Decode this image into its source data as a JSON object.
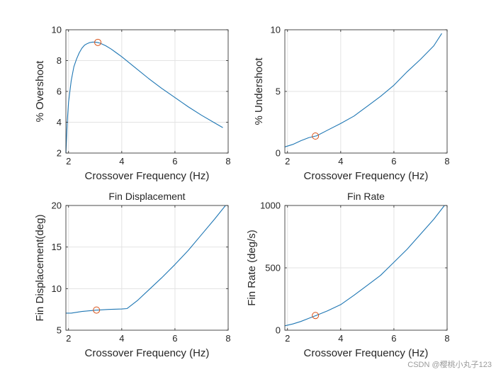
{
  "watermark": "CSDN @樱桃小丸子123",
  "colors": {
    "line": "#1f77b4",
    "marker": "#d95319",
    "grid": "#e3e3e3",
    "axis": "#262626",
    "background": "#ffffff"
  },
  "chart_data": [
    {
      "id": "overshoot",
      "type": "line",
      "title": "",
      "xlabel": "Crossover Frequency (Hz)",
      "ylabel": "% Overshoot",
      "xlim": [
        1.9,
        8
      ],
      "ylim": [
        2,
        10
      ],
      "xticks": [
        2,
        4,
        6,
        8
      ],
      "yticks": [
        2,
        4,
        6,
        8,
        10
      ],
      "grid": true,
      "series": [
        {
          "name": "overshoot",
          "x": [
            1.9,
            1.95,
            2.0,
            2.1,
            2.2,
            2.3,
            2.4,
            2.5,
            2.6,
            2.7,
            2.8,
            2.9,
            3.0,
            3.1,
            3.2,
            3.4,
            3.6,
            3.8,
            4.0,
            4.5,
            5.0,
            5.5,
            6.0,
            6.5,
            7.0,
            7.5,
            7.8
          ],
          "y": [
            2.0,
            4.0,
            5.3,
            6.7,
            7.6,
            8.1,
            8.5,
            8.8,
            9.0,
            9.1,
            9.17,
            9.2,
            9.2,
            9.17,
            9.12,
            8.96,
            8.75,
            8.5,
            8.25,
            7.55,
            6.85,
            6.2,
            5.6,
            5.0,
            4.45,
            3.95,
            3.65
          ]
        }
      ],
      "marker": {
        "x": 3.1,
        "y": 9.18
      }
    },
    {
      "id": "undershoot",
      "type": "line",
      "title": "",
      "xlabel": "Crossover Frequency (Hz)",
      "ylabel": "% Undershoot",
      "xlim": [
        1.9,
        8
      ],
      "ylim": [
        0,
        10
      ],
      "xticks": [
        2,
        4,
        6,
        8
      ],
      "yticks": [
        0,
        5,
        10
      ],
      "grid": true,
      "series": [
        {
          "name": "undershoot",
          "x": [
            1.9,
            2.2,
            2.5,
            2.8,
            3.1,
            3.5,
            4.0,
            4.5,
            5.0,
            5.5,
            6.0,
            6.5,
            7.0,
            7.5,
            7.8
          ],
          "y": [
            0.5,
            0.7,
            1.0,
            1.25,
            1.4,
            1.85,
            2.4,
            3.0,
            3.8,
            4.6,
            5.5,
            6.6,
            7.6,
            8.7,
            9.7
          ]
        }
      ],
      "marker": {
        "x": 3.05,
        "y": 1.38
      }
    },
    {
      "id": "fin-displacement",
      "type": "line",
      "title": "Fin Displacement",
      "xlabel": "Crossover Frequency (Hz)",
      "ylabel": "Fin Displacement(deg)",
      "xlim": [
        1.9,
        8
      ],
      "ylim": [
        5,
        20
      ],
      "xticks": [
        2,
        4,
        6,
        8
      ],
      "yticks": [
        5,
        10,
        15,
        20
      ],
      "grid": true,
      "series": [
        {
          "name": "fin displacement",
          "x": [
            1.9,
            2.1,
            2.5,
            3.0,
            3.5,
            4.0,
            4.2,
            4.6,
            5.0,
            5.5,
            6.0,
            6.5,
            7.0,
            7.5,
            7.9
          ],
          "y": [
            7.05,
            7.05,
            7.25,
            7.4,
            7.5,
            7.55,
            7.6,
            8.6,
            9.8,
            11.3,
            12.9,
            14.6,
            16.5,
            18.4,
            20.0
          ]
        }
      ],
      "marker": {
        "x": 3.05,
        "y": 7.42
      }
    },
    {
      "id": "fin-rate",
      "type": "line",
      "title": "Fin Rate",
      "xlabel": "Crossover Frequency (Hz)",
      "ylabel": "Fin Rate (deg/s)",
      "xlim": [
        1.9,
        8
      ],
      "ylim": [
        0,
        1000
      ],
      "xticks": [
        2,
        4,
        6,
        8
      ],
      "yticks": [
        0,
        500,
        1000
      ],
      "grid": true,
      "series": [
        {
          "name": "fin rate",
          "x": [
            1.9,
            2.2,
            2.5,
            2.8,
            3.1,
            3.5,
            4.0,
            4.5,
            5.0,
            5.5,
            6.0,
            6.5,
            7.0,
            7.5,
            7.9
          ],
          "y": [
            35,
            50,
            70,
            95,
            120,
            155,
            205,
            280,
            360,
            440,
            545,
            650,
            770,
            890,
            1000
          ]
        }
      ],
      "marker": {
        "x": 3.05,
        "y": 118
      }
    }
  ]
}
